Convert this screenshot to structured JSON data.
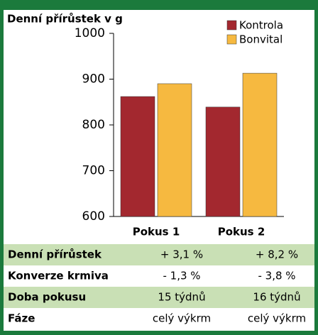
{
  "chart_data": {
    "type": "bar",
    "title": "Denní přírůstek v g",
    "categories": [
      "Pokus 1",
      "Pokus 2"
    ],
    "series": [
      {
        "name": "Kontrola",
        "color": "#a3282f",
        "values": [
          862,
          839
        ]
      },
      {
        "name": "Bonvital",
        "color": "#f6b940",
        "values": [
          890,
          913
        ]
      }
    ],
    "ylim": [
      600,
      1000
    ],
    "yticks": [
      600,
      700,
      800,
      900,
      1000
    ],
    "legend": "upper right"
  },
  "table": {
    "rows": [
      [
        "Denní přírůstek",
        "+ 3,1 %",
        "+ 8,2 %"
      ],
      [
        "Konverze krmiva",
        "- 1,3 %",
        "- 3,8 %"
      ],
      [
        "Doba pokusu",
        "15 týdnů",
        "16 týdnů"
      ],
      [
        "Fáze",
        "celý výkrm",
        "celý výkrm"
      ]
    ]
  }
}
